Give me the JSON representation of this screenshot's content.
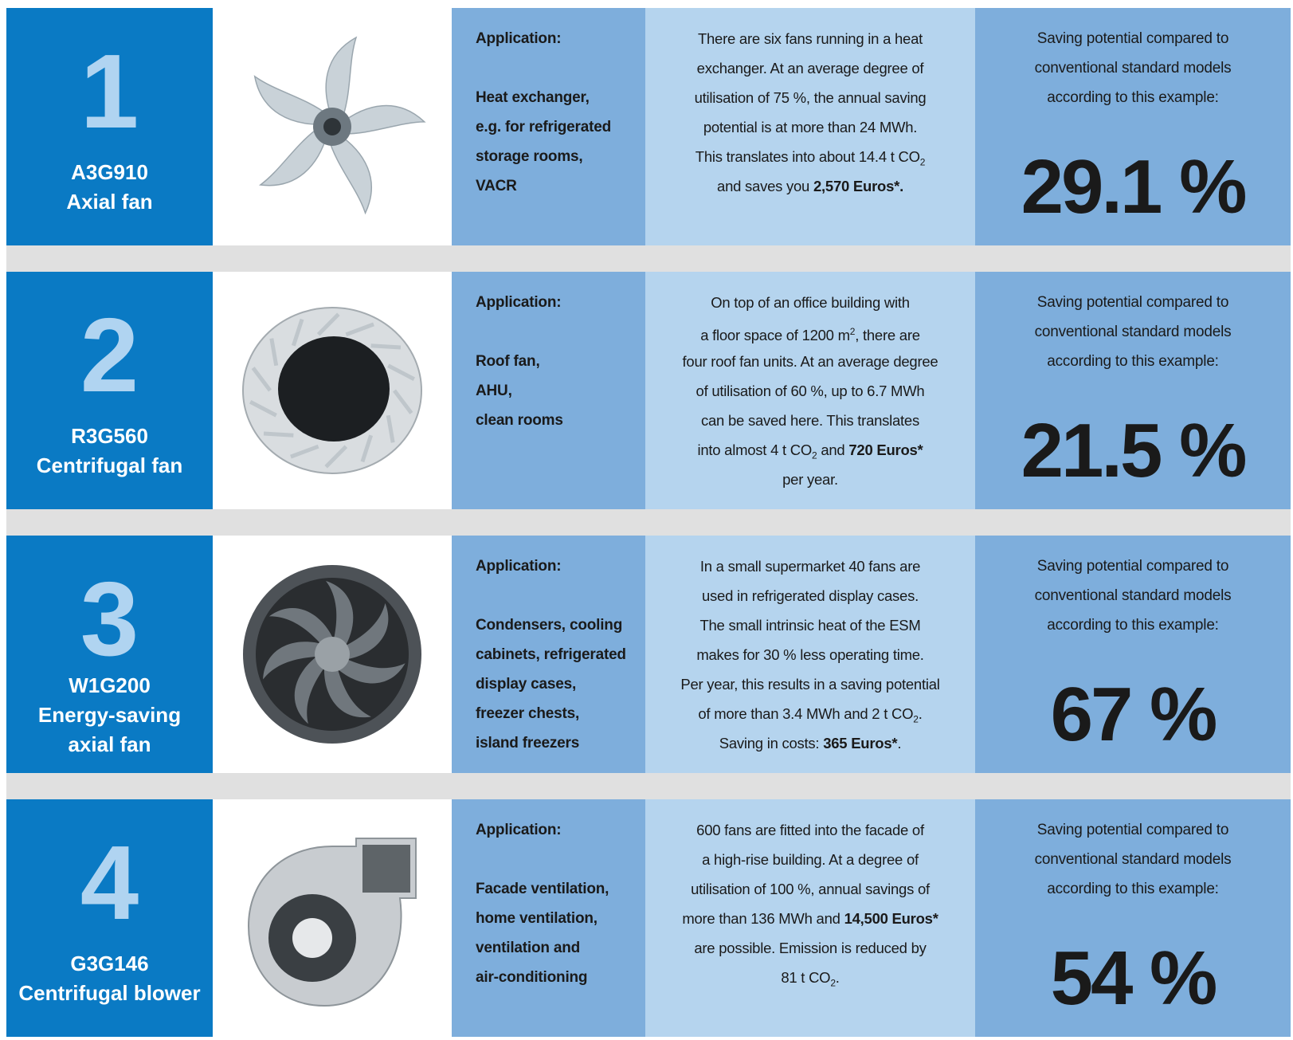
{
  "rows": [
    {
      "number": "1",
      "label": [
        "A3G910",
        "Axial fan"
      ],
      "application": {
        "heading": "Application:",
        "lines": [
          "Heat exchanger,",
          "e.g. for refrigerated",
          "storage rooms,",
          "VACR"
        ]
      },
      "description": [
        [
          "There are six fans running in a heat"
        ],
        [
          "exchanger. At an average degree of"
        ],
        [
          "utilisation of 75 %, the annual saving"
        ],
        [
          "potential is at more than 24 MWh."
        ],
        [
          "This translates into about 14.4 t CO",
          {
            "text": "2",
            "style": "sub"
          }
        ],
        [
          "and saves you ",
          {
            "text": "2,570 Euros*.",
            "style": "bold"
          }
        ]
      ],
      "saving": {
        "lines": [
          "Saving potential compared to",
          "conventional standard models",
          "according to this example:"
        ],
        "value": "29.1 %"
      }
    },
    {
      "number": "2",
      "label": [
        "R3G560",
        "Centrifugal fan"
      ],
      "application": {
        "heading": "Application:",
        "lines": [
          "Roof fan,",
          "AHU,",
          "clean rooms"
        ]
      },
      "description": [
        [
          "On top of an office building with"
        ],
        [
          "a floor space of 1200 m",
          {
            "text": "2",
            "style": "sup"
          },
          ", there are"
        ],
        [
          "four roof fan units. At an average degree"
        ],
        [
          "of utilisation of 60 %, up to 6.7 MWh"
        ],
        [
          "can be saved here. This translates"
        ],
        [
          "into almost 4 t CO",
          {
            "text": "2",
            "style": "sub"
          },
          " and ",
          {
            "text": "720 Euros*",
            "style": "bold"
          }
        ],
        [
          "per year."
        ]
      ],
      "saving": {
        "lines": [
          "Saving potential compared to",
          "conventional standard models",
          "according to this example:"
        ],
        "value": "21.5 %"
      }
    },
    {
      "number": "3",
      "label": [
        "W1G200",
        "Energy-saving",
        "axial fan"
      ],
      "application": {
        "heading": "Application:",
        "lines": [
          "Condensers, cooling",
          "cabinets, refrigerated",
          "display cases,",
          "freezer chests,",
          "island freezers"
        ]
      },
      "description": [
        [
          "In a small supermarket 40 fans are"
        ],
        [
          "used in refrigerated display cases."
        ],
        [
          "The small intrinsic heat of the ESM"
        ],
        [
          "makes for 30 % less operating time."
        ],
        [
          "Per year, this results in a saving potential"
        ],
        [
          "of more than 3.4 MWh and 2 t CO",
          {
            "text": "2",
            "style": "sub"
          },
          "."
        ],
        [
          "Saving in costs: ",
          {
            "text": "365 Euros*",
            "style": "bold"
          },
          "."
        ]
      ],
      "saving": {
        "lines": [
          "Saving potential compared to",
          "conventional standard models",
          "according to this example:"
        ],
        "value": "67 %"
      }
    },
    {
      "number": "4",
      "label": [
        "G3G146",
        "Centrifugal blower"
      ],
      "application": {
        "heading": "Application:",
        "lines": [
          "Facade ventilation,",
          "home ventilation,",
          "ventilation and",
          "air-conditioning"
        ]
      },
      "description": [
        [
          "600 fans are fitted into the facade of"
        ],
        [
          "a high-rise building. At a degree of"
        ],
        [
          "utilisation of 100 %, annual savings of"
        ],
        [
          "more than 136 MWh and ",
          {
            "text": "14,500 Euros*",
            "style": "bold"
          }
        ],
        [
          "are possible. Emission is reduced by"
        ],
        [
          "81 t CO",
          {
            "text": "2",
            "style": "sub"
          },
          "."
        ]
      ],
      "saving": {
        "lines": [
          "Saving potential compared to",
          "conventional standard models",
          "according to this example:"
        ],
        "value": "54 %"
      }
    }
  ]
}
